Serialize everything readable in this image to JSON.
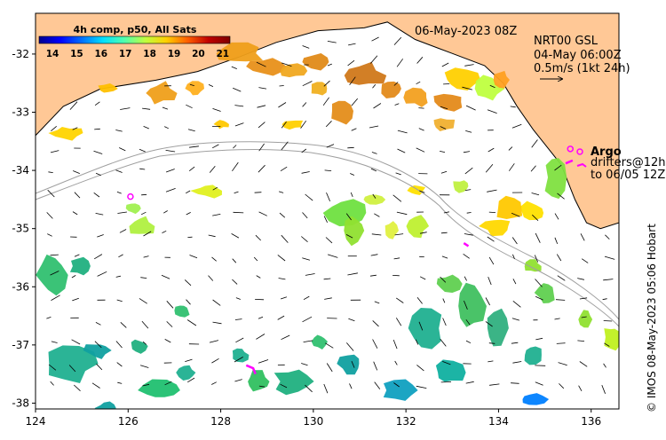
{
  "title": {
    "date_label": "06-May-2023 08Z",
    "product_line1": "NRT00 GSL",
    "product_line2": "04-May 06:00Z",
    "product_line3": "0.5m/s (1kt 24h)"
  },
  "colorbar": {
    "title": "4h comp, p50, All Sats",
    "ticks": [
      "14",
      "15",
      "16",
      "17",
      "18",
      "19",
      "20",
      "21"
    ],
    "colors": [
      "#00008f",
      "#0000ff",
      "#006fff",
      "#00dfff",
      "#4fffaf",
      "#bfff3f",
      "#ffcf00",
      "#ff5f00",
      "#bf0000",
      "#7f0000"
    ]
  },
  "legend": {
    "argo_label": "Argo",
    "drifters_line1": "drifters@12h",
    "drifters_line2": "to 06/05 12Z",
    "argo_color": "#ff00ff"
  },
  "credit": "© IMOS 08-May-2023 05:06 Hobart",
  "chart_data": {
    "type": "map",
    "xlabel": "",
    "ylabel": "",
    "xlim": [
      124,
      136.6
    ],
    "ylim": [
      -38.1,
      -31.3
    ],
    "x_ticks": [
      "124",
      "126",
      "128",
      "130",
      "132",
      "134",
      "136"
    ],
    "y_ticks": [
      "-32",
      "-33",
      "-34",
      "-35",
      "-36",
      "-37",
      "-38"
    ],
    "land_color": "#ffc896",
    "coastline": [
      [
        124,
        -33.4
      ],
      [
        124.6,
        -32.9
      ],
      [
        125.4,
        -32.6
      ],
      [
        126.6,
        -32.45
      ],
      [
        127.5,
        -32.3
      ],
      [
        128.4,
        -32.05
      ],
      [
        129.2,
        -31.8
      ],
      [
        130.1,
        -31.6
      ],
      [
        131.1,
        -31.55
      ],
      [
        131.6,
        -31.45
      ],
      [
        132.2,
        -31.75
      ],
      [
        132.7,
        -31.9
      ],
      [
        133.2,
        -32.05
      ],
      [
        133.7,
        -32.2
      ],
      [
        134.1,
        -32.5
      ],
      [
        134.4,
        -32.9
      ],
      [
        134.75,
        -33.3
      ],
      [
        135.0,
        -33.55
      ],
      [
        135.35,
        -33.9
      ],
      [
        135.65,
        -34.5
      ],
      [
        135.9,
        -34.9
      ],
      [
        136.2,
        -35.0
      ],
      [
        136.6,
        -34.9
      ]
    ],
    "argo_floats": [
      [
        126.05,
        -34.45
      ],
      [
        135.55,
        -33.63
      ]
    ],
    "drifter_tracks": [
      [
        [
          128.55,
          -37.35
        ],
        [
          128.7,
          -37.4
        ],
        [
          128.75,
          -37.5
        ]
      ],
      [
        [
          133.25,
          -35.25
        ],
        [
          133.35,
          -35.3
        ]
      ],
      [
        [
          135.45,
          -33.88
        ],
        [
          135.6,
          -33.83
        ]
      ]
    ]
  }
}
